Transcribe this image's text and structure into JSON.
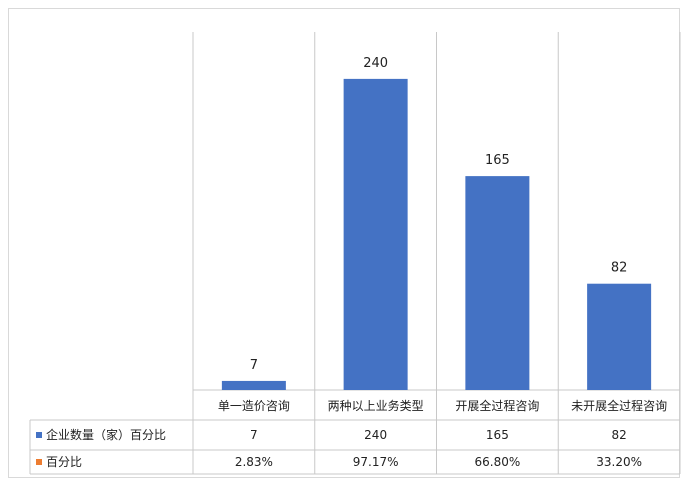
{
  "chart_data": {
    "type": "bar",
    "categories": [
      "单一造价咨询",
      "两种以上业务类型",
      "开展全过程咨询",
      "未开展全过程咨询"
    ],
    "series": [
      {
        "name": "企业数量（家）百分比",
        "values": [
          7,
          240,
          165,
          82
        ],
        "color": "#4472c4"
      }
    ],
    "table_rows": [
      {
        "label": "企业数量（家）百分比",
        "marker_color": "#4472c4",
        "cells": [
          "7",
          "240",
          "165",
          "82"
        ]
      },
      {
        "label": "百分比",
        "marker_color": "#ed7d31",
        "cells": [
          "2.83%",
          "97.17%",
          "66.80%",
          "33.20%"
        ]
      }
    ],
    "ylim": [
      0,
      270
    ],
    "grid": false,
    "data_labels": true,
    "legend": "data-table"
  }
}
